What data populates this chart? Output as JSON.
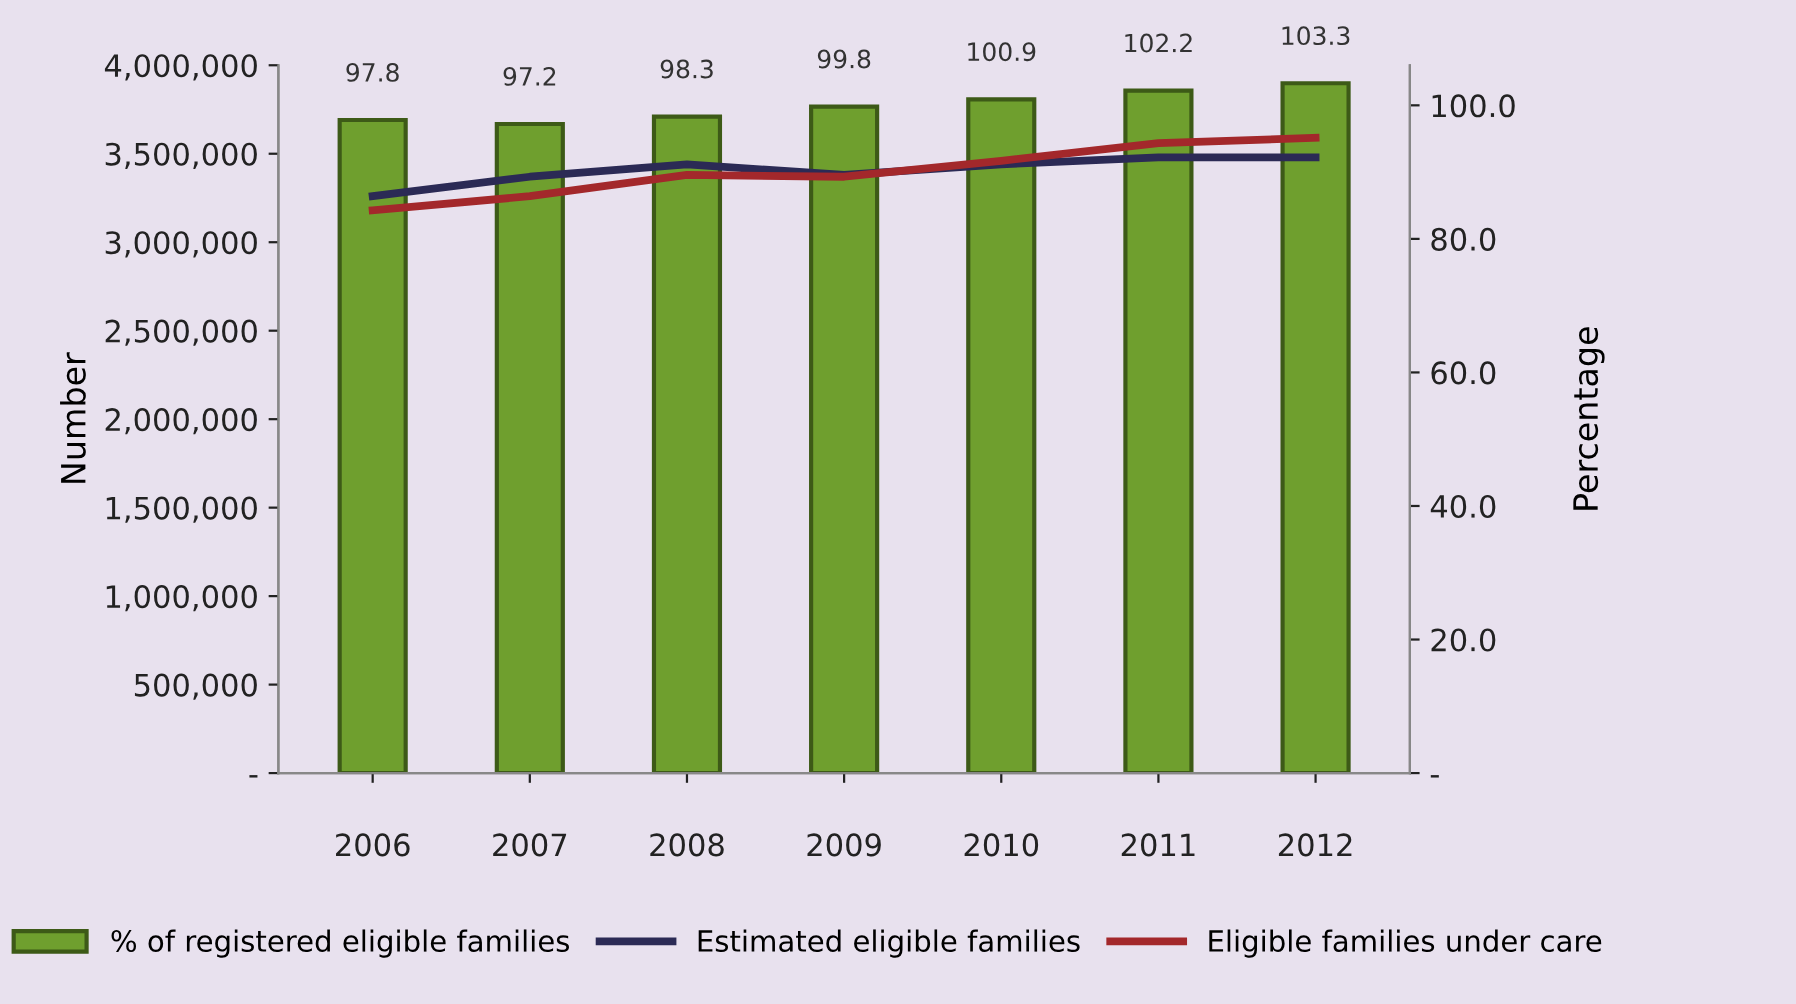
{
  "chart_data": {
    "type": "bar",
    "xlabel": null,
    "ylabel": "Number",
    "y2label": "Percentage",
    "categories": [
      "2006",
      "2007",
      "2008",
      "2009",
      "2010",
      "2011",
      "2012"
    ],
    "series": [
      {
        "name": "% of registered eligible families",
        "axis": "y2",
        "color": "#6f9f2e",
        "values": [
          97.8,
          97.2,
          98.3,
          99.8,
          100.9,
          102.2,
          103.3
        ],
        "value_labels": [
          "97.8",
          "97.2",
          "98.3",
          "99.8",
          "100.9",
          "102.2",
          "103.3"
        ]
      },
      {
        "name": "Estimated eligible families",
        "type": "line",
        "axis": "y",
        "color": "#2b2a55",
        "values": [
          3260000,
          3370000,
          3440000,
          3380000,
          3440000,
          3480000,
          3480000
        ]
      },
      {
        "name": "Eligible families under care",
        "type": "line",
        "axis": "y",
        "color": "#a3282b",
        "values": [
          3180000,
          3260000,
          3380000,
          3370000,
          3460000,
          3560000,
          3590000
        ]
      }
    ],
    "ylim": [
      0,
      4000000
    ],
    "yticks": [
      {
        "value": 0,
        "label": "-"
      },
      {
        "value": 500000,
        "label": "500,000"
      },
      {
        "value": 1000000,
        "label": "1,000,000"
      },
      {
        "value": 1500000,
        "label": "1,500,000"
      },
      {
        "value": 2000000,
        "label": "2,000,000"
      },
      {
        "value": 2500000,
        "label": "2,500,000"
      },
      {
        "value": 3000000,
        "label": "3,000,000"
      },
      {
        "value": 3500000,
        "label": "3,500,000"
      },
      {
        "value": 4000000,
        "label": "4,000,000"
      }
    ],
    "y2lim": [
      0,
      106
    ],
    "y2ticks": [
      {
        "value": 0,
        "label": "-"
      },
      {
        "value": 20,
        "label": "20.0"
      },
      {
        "value": 40,
        "label": "40.0"
      },
      {
        "value": 60,
        "label": "60.0"
      },
      {
        "value": 80,
        "label": "80.0"
      },
      {
        "value": 100,
        "label": "100.0"
      }
    ],
    "grid": false,
    "legend": "bottom"
  }
}
